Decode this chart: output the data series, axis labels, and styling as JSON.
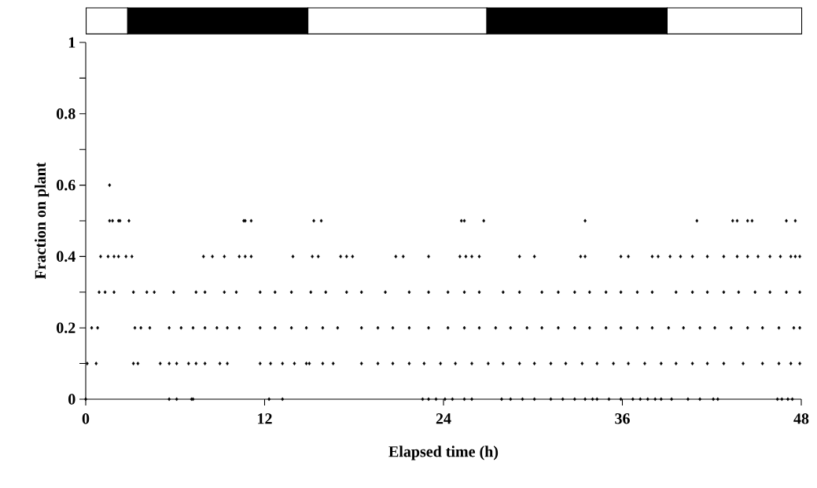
{
  "chart_data": {
    "type": "scatter",
    "xlabel": "Elapsed time (h)",
    "ylabel": "Fraction on plant",
    "xlim": [
      0,
      48
    ],
    "ylim": [
      0,
      1
    ],
    "xticks": [
      0,
      12,
      24,
      36,
      48
    ],
    "yticks": [
      0,
      {
        "value": 0.1,
        "label": null
      },
      0.2,
      {
        "value": 0.3,
        "label": null
      },
      0.4,
      {
        "value": 0.5,
        "label": null
      },
      0.6,
      {
        "value": 0.7,
        "label": null
      },
      0.8,
      {
        "value": 0.9,
        "label": null
      },
      1
    ],
    "marker": "diamond",
    "series": [
      {
        "color": "#000000",
        "x": [
          1.6,
          1.6,
          1.8,
          2.2,
          2.3,
          2.9,
          10.6,
          10.7,
          11.1,
          15.3,
          15.8,
          25.2,
          25.4,
          26.7,
          33.5,
          41.0,
          43.4,
          43.7,
          44.4,
          44.7,
          47.0,
          47.6,
          1.0,
          1.5,
          1.9,
          2.2,
          2.7,
          3.1,
          7.9,
          8.5,
          9.3,
          10.3,
          10.7,
          11.1,
          13.9,
          15.2,
          15.6,
          17.1,
          17.5,
          17.9,
          20.8,
          21.3,
          23.0,
          25.1,
          25.5,
          25.9,
          26.4,
          29.1,
          30.1,
          33.2,
          33.5,
          35.9,
          36.4,
          38.0,
          38.4,
          39.2,
          39.9,
          40.7,
          41.7,
          42.8,
          43.7,
          44.4,
          45.1,
          45.9,
          46.6,
          47.3,
          47.6,
          47.9,
          0.9,
          1.3,
          1.9,
          3.2,
          4.1,
          4.6,
          5.9,
          7.4,
          8.0,
          9.3,
          10.1,
          11.7,
          12.7,
          13.8,
          15.1,
          16.1,
          17.5,
          18.5,
          20.1,
          21.7,
          23.0,
          24.3,
          25.4,
          26.4,
          28.0,
          29.1,
          30.6,
          31.7,
          32.8,
          33.8,
          34.9,
          35.9,
          37.0,
          38.0,
          39.6,
          40.7,
          41.7,
          42.8,
          43.8,
          44.9,
          45.9,
          47.0,
          47.9,
          0.4,
          0.8,
          3.3,
          3.7,
          4.3,
          5.6,
          6.4,
          7.2,
          8.0,
          8.8,
          9.5,
          10.3,
          11.7,
          12.7,
          13.8,
          14.8,
          15.9,
          16.9,
          18.5,
          19.6,
          20.6,
          21.7,
          23.0,
          24.3,
          25.4,
          26.4,
          27.5,
          28.5,
          29.6,
          30.6,
          31.7,
          32.8,
          33.8,
          34.9,
          35.9,
          37.0,
          38.0,
          39.1,
          40.1,
          41.2,
          42.2,
          43.3,
          44.4,
          45.4,
          46.5,
          47.5,
          47.9,
          0.1,
          0.7,
          3.2,
          3.5,
          5.0,
          5.6,
          6.1,
          6.9,
          7.4,
          8.0,
          9.0,
          9.5,
          11.7,
          12.4,
          13.2,
          14.0,
          14.8,
          15.0,
          15.9,
          16.6,
          18.5,
          19.6,
          20.6,
          21.7,
          22.7,
          23.8,
          24.8,
          25.9,
          27.0,
          28.0,
          29.1,
          30.1,
          31.2,
          32.2,
          33.3,
          34.3,
          35.4,
          36.4,
          37.5,
          38.6,
          39.6,
          40.7,
          41.7,
          42.8,
          44.1,
          45.4,
          46.5,
          47.3,
          47.9,
          0,
          5.6,
          6.1,
          7.1,
          7.2,
          12.3,
          13.2,
          22.6,
          23.0,
          23.5,
          24.1,
          24.6,
          25.4,
          25.9,
          27.9,
          28.5,
          29.3,
          30.1,
          31.2,
          32.0,
          32.8,
          33.5,
          34.0,
          34.3,
          35.1,
          35.9,
          36.7,
          37.2,
          37.7,
          38.2,
          38.6,
          39.3,
          40.4,
          41.2,
          42.1,
          42.4,
          46.4,
          46.7,
          47.1,
          47.4
        ],
        "values": [
          0.6,
          0.5,
          0.5,
          0.5,
          0.5,
          0.5,
          0.5,
          0.5,
          0.5,
          0.5,
          0.5,
          0.5,
          0.5,
          0.5,
          0.5,
          0.5,
          0.5,
          0.5,
          0.5,
          0.5,
          0.5,
          0.5,
          0.4,
          0.4,
          0.4,
          0.4,
          0.4,
          0.4,
          0.4,
          0.4,
          0.4,
          0.4,
          0.4,
          0.4,
          0.4,
          0.4,
          0.4,
          0.4,
          0.4,
          0.4,
          0.4,
          0.4,
          0.4,
          0.4,
          0.4,
          0.4,
          0.4,
          0.4,
          0.4,
          0.4,
          0.4,
          0.4,
          0.4,
          0.4,
          0.4,
          0.4,
          0.4,
          0.4,
          0.4,
          0.4,
          0.4,
          0.4,
          0.4,
          0.4,
          0.4,
          0.4,
          0.4,
          0.4,
          0.3,
          0.3,
          0.3,
          0.3,
          0.3,
          0.3,
          0.3,
          0.3,
          0.3,
          0.3,
          0.3,
          0.3,
          0.3,
          0.3,
          0.3,
          0.3,
          0.3,
          0.3,
          0.3,
          0.3,
          0.3,
          0.3,
          0.3,
          0.3,
          0.3,
          0.3,
          0.3,
          0.3,
          0.3,
          0.3,
          0.3,
          0.3,
          0.3,
          0.3,
          0.3,
          0.3,
          0.3,
          0.3,
          0.3,
          0.3,
          0.3,
          0.3,
          0.3,
          0.2,
          0.2,
          0.2,
          0.2,
          0.2,
          0.2,
          0.2,
          0.2,
          0.2,
          0.2,
          0.2,
          0.2,
          0.2,
          0.2,
          0.2,
          0.2,
          0.2,
          0.2,
          0.2,
          0.2,
          0.2,
          0.2,
          0.2,
          0.2,
          0.2,
          0.2,
          0.2,
          0.2,
          0.2,
          0.2,
          0.2,
          0.2,
          0.2,
          0.2,
          0.2,
          0.2,
          0.2,
          0.2,
          0.2,
          0.2,
          0.2,
          0.2,
          0.2,
          0.2,
          0.2,
          0.2,
          0.2,
          0.1,
          0.1,
          0.1,
          0.1,
          0.1,
          0.1,
          0.1,
          0.1,
          0.1,
          0.1,
          0.1,
          0.1,
          0.1,
          0.1,
          0.1,
          0.1,
          0.1,
          0.1,
          0.1,
          0.1,
          0.1,
          0.1,
          0.1,
          0.1,
          0.1,
          0.1,
          0.1,
          0.1,
          0.1,
          0.1,
          0.1,
          0.1,
          0.1,
          0.1,
          0.1,
          0.1,
          0.1,
          0.1,
          0.1,
          0.1,
          0.1,
          0.1,
          0.1,
          0.1,
          0.1,
          0.1,
          0.1,
          0.1,
          0.1,
          0,
          0,
          0,
          0,
          0,
          0,
          0,
          0,
          0,
          0,
          0,
          0,
          0,
          0,
          0,
          0,
          0,
          0,
          0,
          0,
          0,
          0,
          0,
          0,
          0,
          0,
          0,
          0,
          0,
          0,
          0,
          0,
          0,
          0,
          0,
          0,
          0,
          0,
          0,
          0
        ]
      }
    ]
  }
}
